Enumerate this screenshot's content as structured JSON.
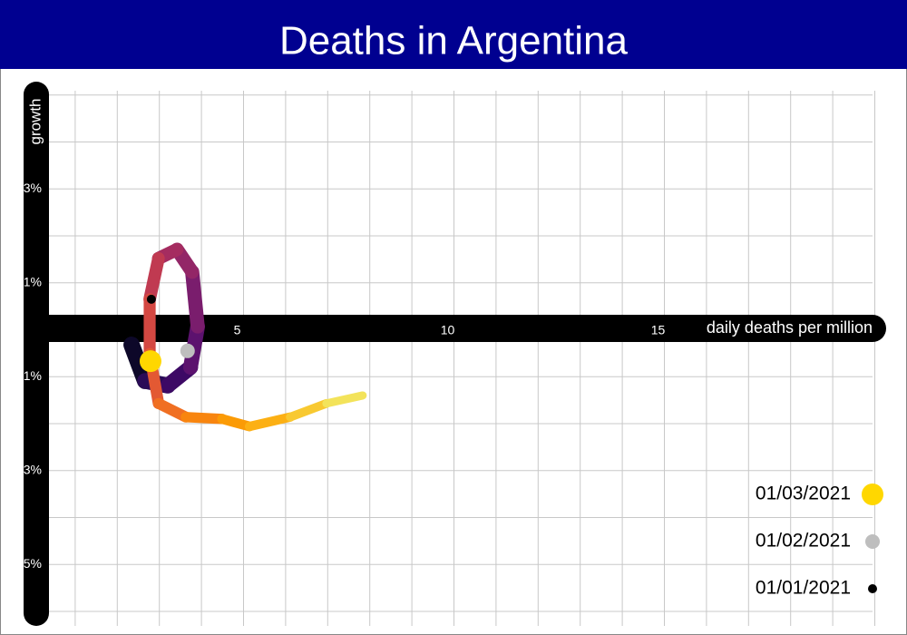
{
  "chart_data": {
    "type": "trajectory",
    "title": "Deaths in Argentina",
    "x_label": "daily deaths per million",
    "y_label": "growth",
    "xlim": [
      0,
      20
    ],
    "ylim": [
      -6.3,
      5.1
    ],
    "xticks": [
      5,
      10,
      15
    ],
    "yticks": [
      {
        "value": -5,
        "label": "-5%"
      },
      {
        "value": -3,
        "label": "-3%"
      },
      {
        "value": -1,
        "label": "-1%"
      },
      {
        "value": 1,
        "label": "1%"
      },
      {
        "value": 3,
        "label": "3%"
      }
    ],
    "x_grid": [
      1,
      2,
      3,
      4,
      5,
      6,
      7,
      8,
      9,
      10,
      11,
      12,
      13,
      14,
      15,
      16,
      17,
      18,
      19,
      20
    ],
    "y_grid": [
      -6,
      -5,
      -4,
      -3,
      -2,
      -1,
      0,
      1,
      2,
      3,
      4,
      5
    ],
    "grid": true,
    "x": [
      2.34,
      2.66,
      3.2,
      3.74,
      3.91,
      3.78,
      3.42,
      2.98,
      2.77,
      2.77,
      2.98,
      3.63,
      4.49,
      5.14,
      6.11,
      6.97,
      7.83
    ],
    "y": [
      -0.32,
      -1.09,
      -1.19,
      -0.8,
      0.07,
      1.23,
      1.71,
      1.52,
      0.65,
      -0.51,
      -1.57,
      -1.86,
      -1.9,
      -2.06,
      -1.86,
      -1.57,
      -1.4
    ],
    "colors": [
      "#0d0829",
      "#2a0b57",
      "#3d0965",
      "#5c126e",
      "#7a1d6d",
      "#932667",
      "#a52c60",
      "#c03a51",
      "#d44842",
      "#e35933",
      "#f06f22",
      "#f8850f",
      "#fb9b06",
      "#fcb014",
      "#f8c931",
      "#f3e35a",
      "#fcf7a0"
    ],
    "markers": [
      {
        "name": "01/03/2021",
        "x": 2.79,
        "y": -0.67,
        "color": "#ffd700"
      },
      {
        "name": "01/02/2021",
        "x": 3.67,
        "y": -0.45,
        "color": "#bebebe"
      },
      {
        "name": "01/01/2021",
        "x": 2.81,
        "y": 0.65,
        "color": "#000000"
      }
    ]
  }
}
